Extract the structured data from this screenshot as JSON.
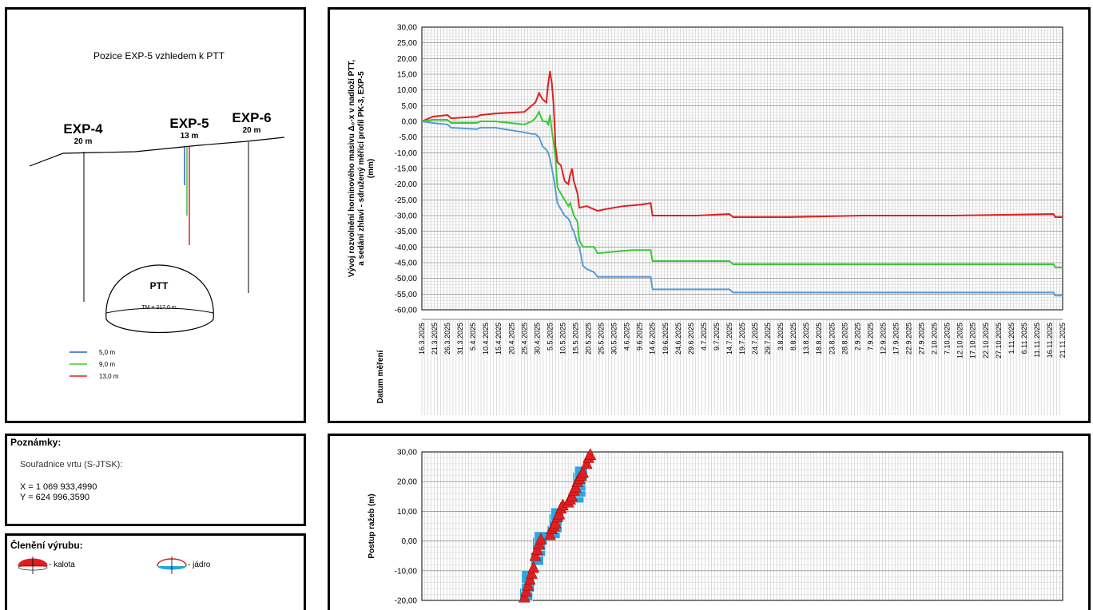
{
  "position_panel": {
    "title": "Pozice EXP-5 vzhledem k PTT",
    "boreholes": [
      {
        "name": "EXP-4",
        "depth": "20 m"
      },
      {
        "name": "EXP-5",
        "depth": "13 m"
      },
      {
        "name": "EXP-6",
        "depth": "20 m"
      }
    ],
    "tunnel_label": "PTT",
    "tunnel_tm": "TM = 217,0 m",
    "legend": [
      {
        "label": "5,0 m",
        "color": "#2f5fc8"
      },
      {
        "label": "9,0 m",
        "color": "#3ac83a"
      },
      {
        "label": "13,0 m",
        "color": "#e02020"
      }
    ]
  },
  "notes_panel": {
    "title": "Poznámky:",
    "coord_title": "Souřadnice vrtu (S-JTSK):",
    "x": "X = 1 069 933,4990",
    "y": "Y = 624 996,3590"
  },
  "excavation_panel": {
    "title": "Členění výrubu:",
    "kalota": "- kalota",
    "jadro": "- jádro",
    "kalota_color": "#e02020",
    "jadro_color": "#29a8e0"
  },
  "chart_data": [
    {
      "type": "line",
      "ylabel_lines": [
        "Vývoj rozvolnění horninového masivu Δ₀-x v nadloží PTT,",
        "a sedání zhlaví - sdružený měřicí profil PK-3, EXP-5",
        "(mm)"
      ],
      "xlabel": "Datum měření",
      "ylim": [
        -60,
        30
      ],
      "yticks": [
        "30,00",
        "25,00",
        "20,00",
        "15,00",
        "10,00",
        "5,00",
        "0,00",
        "-5,00",
        "-10,00",
        "-15,00",
        "-20,00",
        "-25,00",
        "-30,00",
        "-35,00",
        "-40,00",
        "-45,00",
        "-50,00",
        "-55,00",
        "-60,00"
      ],
      "xticks": [
        "16.3.2025",
        "21.3.2025",
        "26.3.2025",
        "31.3.2025",
        "5.4.2025",
        "10.4.2025",
        "15.4.2025",
        "20.4.2025",
        "25.4.2025",
        "30.4.2025",
        "5.5.2025",
        "10.5.2025",
        "15.5.2025",
        "20.5.2025",
        "25.5.2025",
        "30.5.2025",
        "4.6.2025",
        "9.6.2025",
        "14.6.2025",
        "19.6.2025",
        "24.6.2025",
        "29.6.2025",
        "4.7.2025",
        "9.7.2025",
        "14.7.2025",
        "19.7.2025",
        "24.7.2025",
        "29.7.2025",
        "3.8.2025",
        "8.8.2025",
        "13.8.2025",
        "18.8.2025",
        "23.8.2025",
        "28.8.2025",
        "2.9.2025",
        "7.9.2025",
        "12.9.2025",
        "17.9.2025",
        "22.9.2025",
        "27.9.2025",
        "2.10.2025",
        "7.10.2025",
        "12.10.2025",
        "17.10.2025",
        "22.10.2025",
        "27.10.2025",
        "1.11.2025",
        "6.11.2025",
        "11.11.2025",
        "16.11.2025",
        "21.11.2025"
      ],
      "grid": true,
      "series": [
        {
          "color": "#e02020",
          "points": [
            [
              0,
              0
            ],
            [
              6,
              1.5
            ],
            [
              14,
              2
            ],
            [
              16,
              1
            ],
            [
              30,
              1.5
            ],
            [
              32,
              2
            ],
            [
              40,
              2.5
            ],
            [
              56,
              3
            ],
            [
              60,
              5
            ],
            [
              62,
              6
            ],
            [
              64,
              9
            ],
            [
              66,
              7
            ],
            [
              68,
              6
            ],
            [
              69,
              12
            ],
            [
              70,
              16
            ],
            [
              71,
              12
            ],
            [
              72,
              5
            ],
            [
              73,
              -8
            ],
            [
              74,
              -13
            ],
            [
              76,
              -14
            ],
            [
              78,
              -19
            ],
            [
              80,
              -20
            ],
            [
              81,
              -17
            ],
            [
              82,
              -15
            ],
            [
              83,
              -19
            ],
            [
              85,
              -23
            ],
            [
              86,
              -27.5
            ],
            [
              90,
              -27
            ],
            [
              96,
              -28.5
            ],
            [
              100,
              -28
            ],
            [
              110,
              -27
            ],
            [
              120,
              -26.5
            ],
            [
              125,
              -26
            ],
            [
              126,
              -30
            ],
            [
              150,
              -30
            ],
            [
              168,
              -29.5
            ],
            [
              170,
              -30.5
            ],
            [
              200,
              -30.5
            ],
            [
              240,
              -30
            ],
            [
              290,
              -30
            ],
            [
              345,
              -29.5
            ],
            [
              346,
              -30.5
            ],
            [
              350,
              -30.5
            ]
          ]
        },
        {
          "color": "#3ac83a",
          "points": [
            [
              0,
              0
            ],
            [
              6,
              0.5
            ],
            [
              14,
              0.5
            ],
            [
              16,
              -0.5
            ],
            [
              30,
              -0.5
            ],
            [
              32,
              0
            ],
            [
              40,
              0
            ],
            [
              56,
              -1
            ],
            [
              60,
              0
            ],
            [
              62,
              1
            ],
            [
              64,
              3
            ],
            [
              66,
              0
            ],
            [
              68,
              0
            ],
            [
              69,
              -1
            ],
            [
              70,
              2
            ],
            [
              71,
              -3
            ],
            [
              72,
              -7
            ],
            [
              73,
              -12
            ],
            [
              74,
              -21
            ],
            [
              76,
              -23
            ],
            [
              78,
              -25
            ],
            [
              80,
              -27
            ],
            [
              81,
              -26
            ],
            [
              82,
              -28
            ],
            [
              83,
              -30
            ],
            [
              85,
              -32
            ],
            [
              86,
              -38
            ],
            [
              88,
              -40
            ],
            [
              94,
              -40
            ],
            [
              96,
              -42
            ],
            [
              105,
              -41.5
            ],
            [
              115,
              -41
            ],
            [
              125,
              -41
            ],
            [
              126,
              -44.5
            ],
            [
              150,
              -44.5
            ],
            [
              168,
              -44.5
            ],
            [
              170,
              -45.5
            ],
            [
              200,
              -45.5
            ],
            [
              345,
              -45.5
            ],
            [
              346,
              -46.5
            ],
            [
              350,
              -46.5
            ]
          ]
        },
        {
          "color": "#5b9bd5",
          "points": [
            [
              0,
              0
            ],
            [
              6,
              -0.5
            ],
            [
              14,
              -1
            ],
            [
              16,
              -2
            ],
            [
              30,
              -2.5
            ],
            [
              32,
              -2
            ],
            [
              40,
              -2
            ],
            [
              56,
              -3.5
            ],
            [
              60,
              -4
            ],
            [
              62,
              -4
            ],
            [
              64,
              -5
            ],
            [
              66,
              -8
            ],
            [
              68,
              -9
            ],
            [
              69,
              -10
            ],
            [
              70,
              -12
            ],
            [
              71,
              -15
            ],
            [
              72,
              -18
            ],
            [
              73,
              -22
            ],
            [
              74,
              -26
            ],
            [
              76,
              -28
            ],
            [
              78,
              -30
            ],
            [
              80,
              -31
            ],
            [
              81,
              -32
            ],
            [
              82,
              -34
            ],
            [
              83,
              -35
            ],
            [
              85,
              -39
            ],
            [
              86,
              -40
            ],
            [
              88,
              -46
            ],
            [
              90,
              -47
            ],
            [
              94,
              -48
            ],
            [
              96,
              -49.5
            ],
            [
              105,
              -49.5
            ],
            [
              115,
              -49.5
            ],
            [
              125,
              -49.5
            ],
            [
              126,
              -53.5
            ],
            [
              150,
              -53.5
            ],
            [
              168,
              -53.5
            ],
            [
              170,
              -54.5
            ],
            [
              200,
              -54.5
            ],
            [
              345,
              -54.5
            ],
            [
              346,
              -55.5
            ],
            [
              350,
              -55.5
            ]
          ]
        }
      ]
    },
    {
      "type": "scatter",
      "ylabel": "Postup ražeb (m)",
      "ylim": [
        -20,
        30
      ],
      "yticks": [
        "30,00",
        "20,00",
        "10,00",
        "0,00",
        "-10,00",
        "-20,00"
      ],
      "grid": true,
      "series": [
        {
          "name": "kalota",
          "marker": "triangle",
          "color": "#e02020",
          "points": [
            [
              56,
              -19
            ],
            [
              57,
              -17
            ],
            [
              58,
              -15
            ],
            [
              59,
              -13
            ],
            [
              60,
              -11
            ],
            [
              61,
              -9
            ],
            [
              62,
              -5
            ],
            [
              63,
              -3
            ],
            [
              64,
              -1
            ],
            [
              65,
              0.5
            ],
            [
              70,
              2
            ],
            [
              71,
              4
            ],
            [
              72,
              5
            ],
            [
              73,
              6
            ],
            [
              74,
              8
            ],
            [
              75,
              9
            ],
            [
              76,
              11
            ],
            [
              77,
              12
            ],
            [
              80,
              13
            ],
            [
              81,
              14
            ],
            [
              82,
              15
            ],
            [
              83,
              17
            ],
            [
              84,
              18
            ],
            [
              85,
              20
            ],
            [
              86,
              21
            ],
            [
              87,
              22
            ],
            [
              88,
              23
            ],
            [
              90,
              26
            ],
            [
              91,
              28
            ],
            [
              92,
              29
            ]
          ]
        },
        {
          "name": "jádro",
          "marker": "square",
          "color": "#29a8e0",
          "points": [
            [
              57,
              -18
            ],
            [
              58,
              -15
            ],
            [
              58,
              -12
            ],
            [
              63,
              -6
            ],
            [
              64,
              -3
            ],
            [
              64,
              -1
            ],
            [
              65,
              1
            ],
            [
              72,
              3
            ],
            [
              73,
              5
            ],
            [
              73,
              7
            ],
            [
              74,
              9
            ],
            [
              85,
              15
            ],
            [
              86,
              17
            ],
            [
              86,
              19
            ],
            [
              86,
              21
            ],
            [
              87,
              23
            ]
          ]
        }
      ]
    }
  ]
}
